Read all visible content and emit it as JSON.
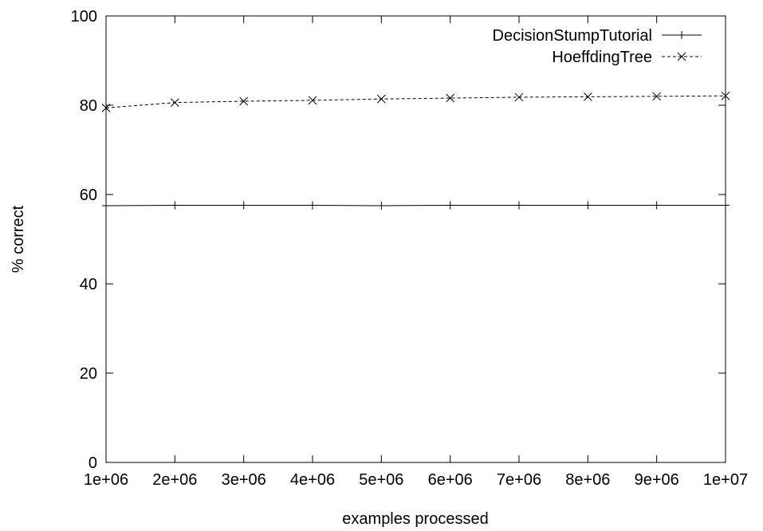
{
  "chart_data": {
    "type": "line",
    "title": "",
    "xlabel": "examples processed",
    "ylabel": "% correct",
    "xlim": [
      1000000,
      10000000
    ],
    "ylim": [
      0,
      100
    ],
    "x_ticks": [
      "1e+06",
      "2e+06",
      "3e+06",
      "4e+06",
      "5e+06",
      "6e+06",
      "7e+06",
      "8e+06",
      "9e+06",
      "1e+07"
    ],
    "y_ticks": [
      "0",
      "20",
      "40",
      "60",
      "80",
      "100"
    ],
    "grid": false,
    "legend_position": "top-right",
    "x": [
      1000000,
      2000000,
      3000000,
      4000000,
      5000000,
      6000000,
      7000000,
      8000000,
      9000000,
      10000000
    ],
    "series": [
      {
        "name": "DecisionStumpTutorial",
        "style": "solid",
        "marker": "plus",
        "values": [
          57.5,
          57.6,
          57.6,
          57.6,
          57.5,
          57.6,
          57.6,
          57.6,
          57.6,
          57.6
        ]
      },
      {
        "name": "HoeffdingTree",
        "style": "dashed",
        "marker": "cross",
        "values": [
          79.4,
          80.6,
          80.9,
          81.1,
          81.4,
          81.6,
          81.8,
          81.9,
          82.0,
          82.1
        ]
      }
    ]
  }
}
